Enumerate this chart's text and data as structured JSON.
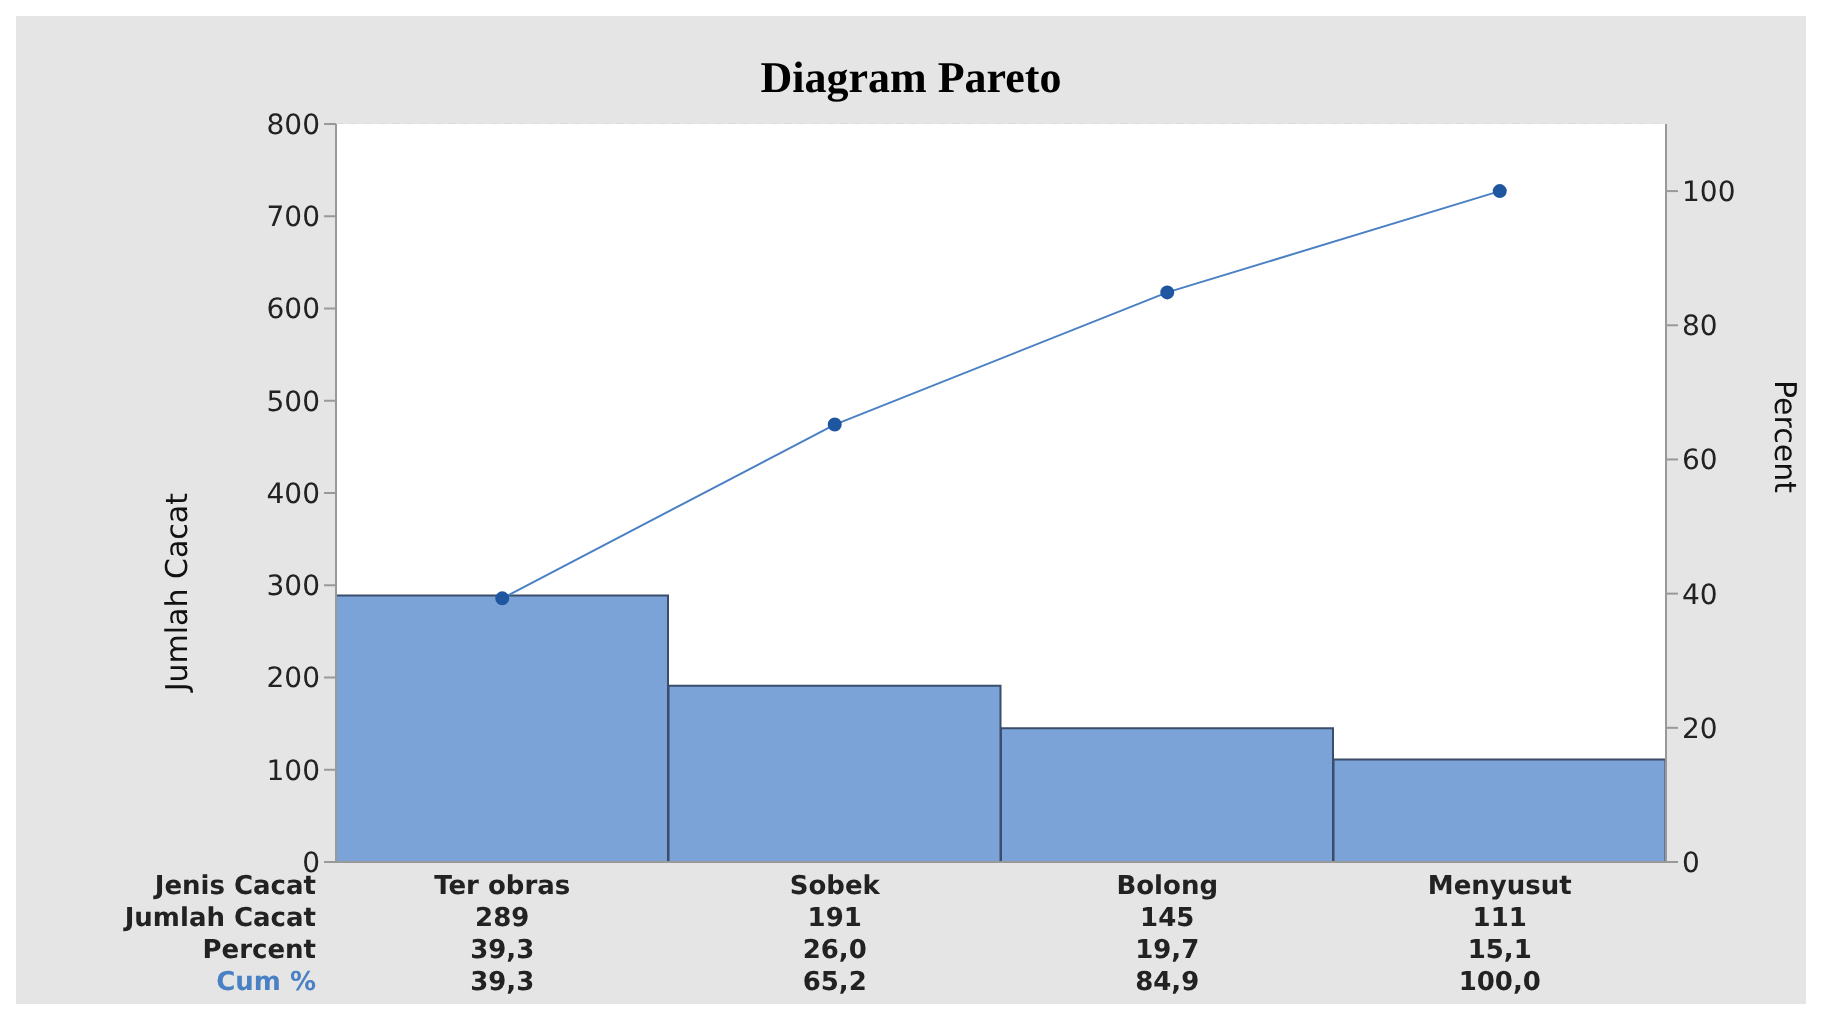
{
  "chart_data": {
    "type": "bar",
    "title": "Diagram Pareto",
    "xlabel": "Jenis Cacat",
    "ylabel": "Jumlah Cacat",
    "y2label": "Percent",
    "categories": [
      "Ter obras",
      "Sobek",
      "Bolong",
      "Menyusut"
    ],
    "series": [
      {
        "name": "Jumlah Cacat",
        "color": "#7ba3d8",
        "values": [
          289,
          191,
          145,
          111
        ],
        "value_labels": [
          "289",
          "191",
          "145",
          "111"
        ]
      },
      {
        "name": "Cum %",
        "type": "line",
        "axis": "y2",
        "color": "#4a80c4",
        "values": [
          39.3,
          65.2,
          84.9,
          100
        ],
        "value_labels": [
          "39,3",
          "65,2",
          "84,9",
          "100,0"
        ]
      }
    ],
    "annotations": [
      "Percent",
      "39,3",
      "26,0",
      "19,7",
      "15,1"
    ],
    "ylim": [
      0,
      800
    ],
    "yticks": [
      0,
      100,
      200,
      300,
      400,
      500,
      600,
      700,
      800
    ],
    "y2lim": [
      0,
      110
    ],
    "y2ticks": [
      0,
      20,
      40,
      60,
      80,
      100
    ],
    "grid": "y2",
    "legend": false,
    "marker": "circle",
    "line_style": "solid"
  }
}
